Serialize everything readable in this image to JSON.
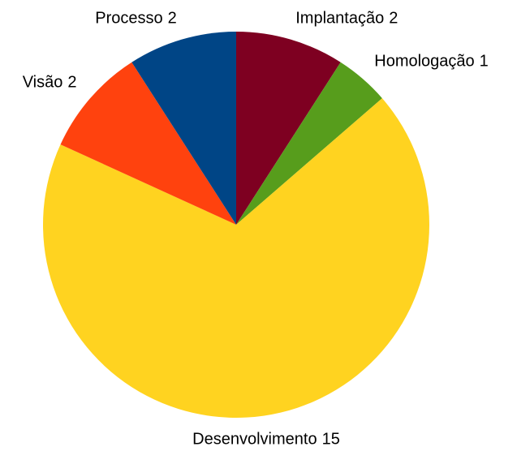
{
  "chart_data": {
    "type": "pie",
    "categories": [
      "Implantação",
      "Homologação",
      "Desenvolvimento",
      "Visão",
      "Processo"
    ],
    "values": [
      2,
      1,
      15,
      2,
      2
    ],
    "colors": [
      "#7e0021",
      "#579d1c",
      "#ffd320",
      "#ff420e",
      "#004586"
    ]
  }
}
